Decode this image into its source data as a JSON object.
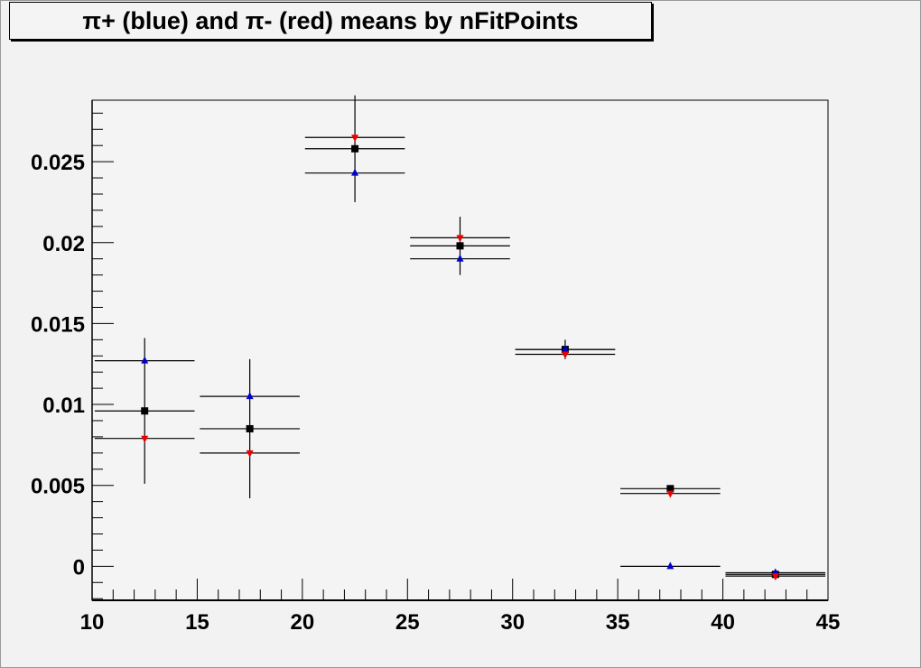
{
  "chart_data": {
    "type": "scatter",
    "title": "π+ (blue) and π- (red) means by nFitPoints",
    "xlim": [
      10,
      45
    ],
    "ylim": [
      -0.0021,
      0.0288
    ],
    "x_ticks": [
      "10",
      "15",
      "20",
      "25",
      "30",
      "35",
      "40",
      "45"
    ],
    "y_ticks": [
      "0",
      "0.005",
      "0.01",
      "0.015",
      "0.02",
      "0.025"
    ],
    "grid": false,
    "x": [
      12.5,
      17.5,
      22.5,
      27.5,
      32.5,
      37.5,
      42.5
    ],
    "x_error": 2.5,
    "series": [
      {
        "marker": "square",
        "color": "#000000",
        "values": [
          0.0096,
          0.0085,
          0.0258,
          0.0198,
          0.0134,
          0.0048,
          -0.0005
        ],
        "errors": [
          0.0045,
          0.0043,
          0.0033,
          0.0018,
          0.0006,
          0.0002,
          0.0002
        ]
      },
      {
        "marker": "triangle-up",
        "color": "#0000cc",
        "values": [
          0.0127,
          0.0105,
          0.0243,
          0.019,
          0.0134,
          0.0,
          -0.0004
        ],
        "errors": [
          0,
          0,
          0,
          0,
          0,
          0,
          0
        ]
      },
      {
        "marker": "triangle-down",
        "color": "#ee0000",
        "values": [
          0.0079,
          0.007,
          0.0265,
          0.0203,
          0.0131,
          0.0045,
          -0.0006
        ],
        "errors": [
          0,
          0,
          0,
          0,
          0,
          0,
          0
        ]
      }
    ]
  }
}
